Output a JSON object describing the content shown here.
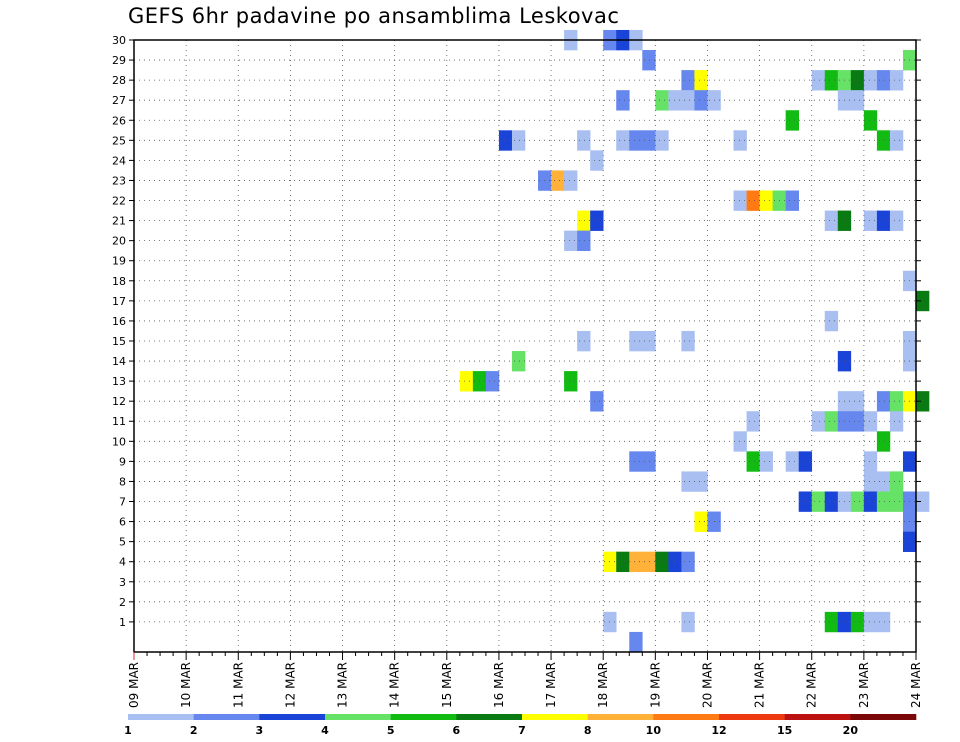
{
  "chart_data": {
    "type": "heatmap",
    "title": "GEFS 6hr padavine po ansamblima Leskovac",
    "xlabel": "",
    "ylabel": "",
    "x_tick_labels": [
      "09 MAR",
      "10 MAR",
      "11 MAR",
      "12 MAR",
      "13 MAR",
      "14 MAR",
      "15 MAR",
      "16 MAR",
      "17 MAR",
      "18 MAR",
      "19 MAR",
      "20 MAR",
      "21 MAR",
      "22 MAR",
      "23 MAR",
      "24 MAR"
    ],
    "y_tick_labels": [
      "1",
      "2",
      "3",
      "4",
      "5",
      "6",
      "7",
      "8",
      "9",
      "10",
      "11",
      "12",
      "13",
      "14",
      "15",
      "16",
      "17",
      "18",
      "19",
      "20",
      "21",
      "22",
      "23",
      "24",
      "25",
      "26",
      "27",
      "28",
      "29",
      "30"
    ],
    "ylim": [
      0,
      30
    ],
    "time_step_hours": 6,
    "start": "09 MAR 00Z",
    "colorbar": {
      "labels": [
        "1",
        "2",
        "3",
        "4",
        "5",
        "6",
        "7",
        "8",
        "10",
        "12",
        "15",
        "20"
      ],
      "colors": [
        "#a9bff2",
        "#6688ee",
        "#1a44d8",
        "#66e266",
        "#11bb11",
        "#0a7a12",
        "#ffff00",
        "#ffb13a",
        "#ff7a12",
        "#ee3a11",
        "#bb1111",
        "#7a0808"
      ]
    },
    "cells": [
      {
        "m": 30,
        "t": 33,
        "c": 0
      },
      {
        "m": 30,
        "t": 36,
        "c": 1
      },
      {
        "m": 30,
        "t": 37,
        "c": 2
      },
      {
        "m": 30,
        "t": 38,
        "c": 0
      },
      {
        "m": 29,
        "t": 39,
        "c": 1
      },
      {
        "m": 29,
        "t": 59,
        "c": 3
      },
      {
        "m": 28,
        "t": 42,
        "c": 1
      },
      {
        "m": 28,
        "t": 43,
        "c": 6
      },
      {
        "m": 28,
        "t": 52,
        "c": 0
      },
      {
        "m": 28,
        "t": 53,
        "c": 4
      },
      {
        "m": 28,
        "t": 54,
        "c": 3
      },
      {
        "m": 28,
        "t": 55,
        "c": 5
      },
      {
        "m": 28,
        "t": 56,
        "c": 0
      },
      {
        "m": 28,
        "t": 57,
        "c": 1
      },
      {
        "m": 28,
        "t": 58,
        "c": 0
      },
      {
        "m": 27,
        "t": 37,
        "c": 1
      },
      {
        "m": 27,
        "t": 40,
        "c": 3
      },
      {
        "m": 27,
        "t": 41,
        "c": 0
      },
      {
        "m": 27,
        "t": 42,
        "c": 0
      },
      {
        "m": 27,
        "t": 43,
        "c": 1
      },
      {
        "m": 27,
        "t": 44,
        "c": 0
      },
      {
        "m": 27,
        "t": 54,
        "c": 0
      },
      {
        "m": 27,
        "t": 55,
        "c": 0
      },
      {
        "m": 26,
        "t": 50,
        "c": 4
      },
      {
        "m": 26,
        "t": 56,
        "c": 4
      },
      {
        "m": 25,
        "t": 28,
        "c": 2
      },
      {
        "m": 25,
        "t": 29,
        "c": 0
      },
      {
        "m": 25,
        "t": 34,
        "c": 0
      },
      {
        "m": 25,
        "t": 37,
        "c": 0
      },
      {
        "m": 25,
        "t": 38,
        "c": 1
      },
      {
        "m": 25,
        "t": 39,
        "c": 1
      },
      {
        "m": 25,
        "t": 40,
        "c": 0
      },
      {
        "m": 25,
        "t": 46,
        "c": 0
      },
      {
        "m": 25,
        "t": 57,
        "c": 4
      },
      {
        "m": 25,
        "t": 58,
        "c": 0
      },
      {
        "m": 24,
        "t": 35,
        "c": 0
      },
      {
        "m": 23,
        "t": 31,
        "c": 1
      },
      {
        "m": 23,
        "t": 32,
        "c": 7
      },
      {
        "m": 23,
        "t": 33,
        "c": 0
      },
      {
        "m": 22,
        "t": 46,
        "c": 0
      },
      {
        "m": 22,
        "t": 47,
        "c": 8
      },
      {
        "m": 22,
        "t": 48,
        "c": 6
      },
      {
        "m": 22,
        "t": 49,
        "c": 3
      },
      {
        "m": 22,
        "t": 50,
        "c": 1
      },
      {
        "m": 21,
        "t": 34,
        "c": 6
      },
      {
        "m": 21,
        "t": 35,
        "c": 2
      },
      {
        "m": 21,
        "t": 53,
        "c": 0
      },
      {
        "m": 21,
        "t": 54,
        "c": 5
      },
      {
        "m": 21,
        "t": 56,
        "c": 0
      },
      {
        "m": 21,
        "t": 57,
        "c": 2
      },
      {
        "m": 21,
        "t": 58,
        "c": 0
      },
      {
        "m": 20,
        "t": 33,
        "c": 0
      },
      {
        "m": 20,
        "t": 34,
        "c": 1
      },
      {
        "m": 18,
        "t": 59,
        "c": 0
      },
      {
        "m": 17,
        "t": 60,
        "c": 5
      },
      {
        "m": 16,
        "t": 53,
        "c": 0
      },
      {
        "m": 15,
        "t": 34,
        "c": 0
      },
      {
        "m": 15,
        "t": 38,
        "c": 0
      },
      {
        "m": 15,
        "t": 39,
        "c": 0
      },
      {
        "m": 15,
        "t": 42,
        "c": 0
      },
      {
        "m": 15,
        "t": 59,
        "c": 0
      },
      {
        "m": 14,
        "t": 29,
        "c": 3
      },
      {
        "m": 14,
        "t": 54,
        "c": 2
      },
      {
        "m": 14,
        "t": 59,
        "c": 0
      },
      {
        "m": 13,
        "t": 25,
        "c": 6
      },
      {
        "m": 13,
        "t": 26,
        "c": 4
      },
      {
        "m": 13,
        "t": 27,
        "c": 1
      },
      {
        "m": 13,
        "t": 33,
        "c": 4
      },
      {
        "m": 12,
        "t": 35,
        "c": 1
      },
      {
        "m": 12,
        "t": 54,
        "c": 0
      },
      {
        "m": 12,
        "t": 55,
        "c": 0
      },
      {
        "m": 12,
        "t": 57,
        "c": 1
      },
      {
        "m": 12,
        "t": 58,
        "c": 3
      },
      {
        "m": 12,
        "t": 59,
        "c": 6
      },
      {
        "m": 12,
        "t": 60,
        "c": 5
      },
      {
        "m": 11,
        "t": 47,
        "c": 0
      },
      {
        "m": 11,
        "t": 52,
        "c": 0
      },
      {
        "m": 11,
        "t": 53,
        "c": 3
      },
      {
        "m": 11,
        "t": 54,
        "c": 1
      },
      {
        "m": 11,
        "t": 55,
        "c": 1
      },
      {
        "m": 11,
        "t": 56,
        "c": 0
      },
      {
        "m": 11,
        "t": 58,
        "c": 0
      },
      {
        "m": 10,
        "t": 46,
        "c": 0
      },
      {
        "m": 10,
        "t": 57,
        "c": 4
      },
      {
        "m": 9,
        "t": 38,
        "c": 1
      },
      {
        "m": 9,
        "t": 39,
        "c": 1
      },
      {
        "m": 9,
        "t": 47,
        "c": 4
      },
      {
        "m": 9,
        "t": 48,
        "c": 0
      },
      {
        "m": 9,
        "t": 50,
        "c": 0
      },
      {
        "m": 9,
        "t": 51,
        "c": 2
      },
      {
        "m": 9,
        "t": 56,
        "c": 0
      },
      {
        "m": 9,
        "t": 59,
        "c": 2
      },
      {
        "m": 8,
        "t": 42,
        "c": 0
      },
      {
        "m": 8,
        "t": 43,
        "c": 0
      },
      {
        "m": 8,
        "t": 56,
        "c": 0
      },
      {
        "m": 8,
        "t": 57,
        "c": 0
      },
      {
        "m": 8,
        "t": 58,
        "c": 3
      },
      {
        "m": 7,
        "t": 51,
        "c": 2
      },
      {
        "m": 7,
        "t": 52,
        "c": 3
      },
      {
        "m": 7,
        "t": 53,
        "c": 2
      },
      {
        "m": 7,
        "t": 54,
        "c": 0
      },
      {
        "m": 7,
        "t": 55,
        "c": 3
      },
      {
        "m": 7,
        "t": 56,
        "c": 2
      },
      {
        "m": 7,
        "t": 57,
        "c": 3
      },
      {
        "m": 7,
        "t": 58,
        "c": 3
      },
      {
        "m": 7,
        "t": 59,
        "c": 1
      },
      {
        "m": 7,
        "t": 60,
        "c": 0
      },
      {
        "m": 6,
        "t": 43,
        "c": 6
      },
      {
        "m": 6,
        "t": 44,
        "c": 1
      },
      {
        "m": 6,
        "t": 59,
        "c": 1
      },
      {
        "m": 5,
        "t": 59,
        "c": 2
      },
      {
        "m": 4,
        "t": 36,
        "c": 6
      },
      {
        "m": 4,
        "t": 37,
        "c": 5
      },
      {
        "m": 4,
        "t": 38,
        "c": 7
      },
      {
        "m": 4,
        "t": 39,
        "c": 7
      },
      {
        "m": 4,
        "t": 40,
        "c": 5
      },
      {
        "m": 4,
        "t": 41,
        "c": 2
      },
      {
        "m": 4,
        "t": 42,
        "c": 1
      },
      {
        "m": 1,
        "t": 36,
        "c": 0
      },
      {
        "m": 1,
        "t": 42,
        "c": 0
      },
      {
        "m": 1,
        "t": 53,
        "c": 4
      },
      {
        "m": 1,
        "t": 54,
        "c": 2
      },
      {
        "m": 1,
        "t": 55,
        "c": 4
      },
      {
        "m": 1,
        "t": 56,
        "c": 0
      },
      {
        "m": 1,
        "t": 57,
        "c": 0
      },
      {
        "m": 0,
        "t": 38,
        "c": 1
      }
    ]
  }
}
